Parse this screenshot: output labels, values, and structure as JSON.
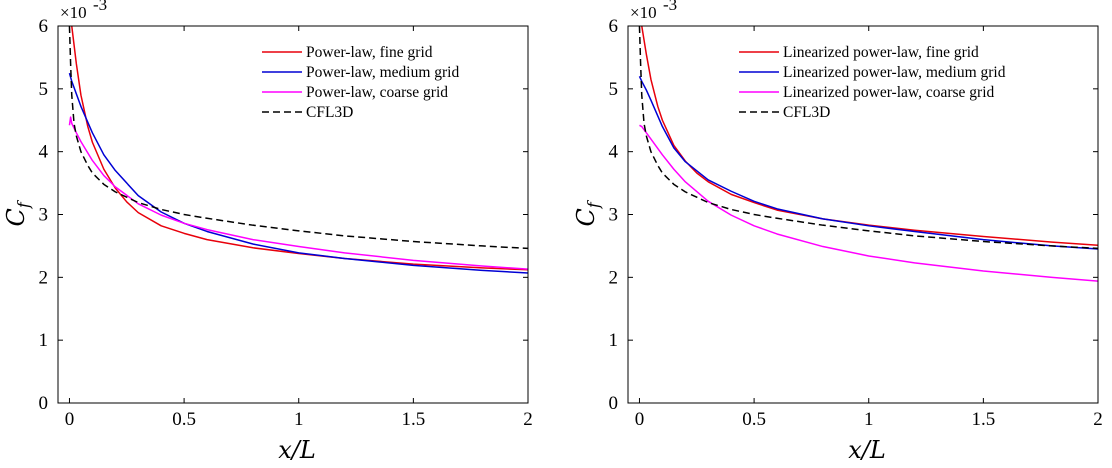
{
  "chart_data": [
    {
      "type": "line",
      "xlabel": "x/L",
      "ylabel": "C_f",
      "ylabel_main": "C",
      "ylabel_sub": "f",
      "exponent_label": "×10",
      "exponent_power": "-3",
      "xlim": [
        -0.05,
        2
      ],
      "ylim": [
        0,
        6
      ],
      "xticks": [
        0,
        0.5,
        1,
        1.5,
        2
      ],
      "xtick_labels": [
        "0",
        "0.5",
        "1",
        "1.5",
        "2"
      ],
      "yticks": [
        0,
        1,
        2,
        3,
        4,
        5,
        6
      ],
      "ytick_labels": [
        "0",
        "1",
        "2",
        "3",
        "4",
        "5",
        "6"
      ],
      "grid": false,
      "legend_position": "top-right",
      "series": [
        {
          "name": "Power-law, fine grid",
          "color": "#e8000b",
          "dash": "solid",
          "x": [
            0.01,
            0.03,
            0.05,
            0.08,
            0.1,
            0.15,
            0.2,
            0.25,
            0.3,
            0.4,
            0.5,
            0.6,
            0.8,
            1.0,
            1.2,
            1.5,
            1.8,
            2.0
          ],
          "y": [
            6.0,
            5.4,
            4.9,
            4.4,
            4.15,
            3.72,
            3.42,
            3.2,
            3.03,
            2.82,
            2.7,
            2.6,
            2.47,
            2.38,
            2.3,
            2.21,
            2.15,
            2.12
          ]
        },
        {
          "name": "Power-law, medium grid",
          "color": "#0000d4",
          "dash": "solid",
          "x": [
            0.0,
            0.01,
            0.03,
            0.05,
            0.1,
            0.15,
            0.2,
            0.3,
            0.4,
            0.5,
            0.6,
            0.8,
            1.0,
            1.2,
            1.5,
            1.8,
            2.0
          ],
          "y": [
            5.25,
            5.12,
            4.92,
            4.72,
            4.3,
            3.95,
            3.7,
            3.3,
            3.04,
            2.86,
            2.73,
            2.53,
            2.39,
            2.3,
            2.19,
            2.11,
            2.07
          ]
        },
        {
          "name": "Power-law, coarse grid",
          "color": "#ff00ff",
          "dash": "solid",
          "x": [
            0.0,
            0.005,
            0.01,
            0.03,
            0.05,
            0.1,
            0.15,
            0.2,
            0.3,
            0.4,
            0.5,
            0.6,
            0.8,
            1.0,
            1.2,
            1.5,
            1.8,
            2.0
          ],
          "y": [
            4.42,
            4.55,
            4.45,
            4.3,
            4.16,
            3.86,
            3.62,
            3.44,
            3.17,
            2.99,
            2.86,
            2.76,
            2.6,
            2.49,
            2.39,
            2.27,
            2.18,
            2.13
          ]
        },
        {
          "name": "CFL3D",
          "color": "#000000",
          "dash": "dashed",
          "x": [
            0.0,
            0.005,
            0.01,
            0.02,
            0.03,
            0.05,
            0.08,
            0.1,
            0.15,
            0.2,
            0.3,
            0.4,
            0.5,
            0.6,
            0.8,
            1.0,
            1.2,
            1.5,
            1.8,
            2.0
          ],
          "y": [
            6.0,
            5.4,
            4.9,
            4.45,
            4.25,
            4.0,
            3.78,
            3.66,
            3.48,
            3.36,
            3.19,
            3.08,
            3.0,
            2.94,
            2.83,
            2.74,
            2.66,
            2.57,
            2.5,
            2.46
          ]
        }
      ]
    },
    {
      "type": "line",
      "xlabel": "x/L",
      "ylabel": "C_f",
      "ylabel_main": "C",
      "ylabel_sub": "f",
      "exponent_label": "×10",
      "exponent_power": "-3",
      "xlim": [
        -0.05,
        2
      ],
      "ylim": [
        0,
        6
      ],
      "xticks": [
        0,
        0.5,
        1,
        1.5,
        2
      ],
      "xtick_labels": [
        "0",
        "0.5",
        "1",
        "1.5",
        "2"
      ],
      "yticks": [
        0,
        1,
        2,
        3,
        4,
        5,
        6
      ],
      "ytick_labels": [
        "0",
        "1",
        "2",
        "3",
        "4",
        "5",
        "6"
      ],
      "grid": false,
      "legend_position": "top-right",
      "series": [
        {
          "name": "Linearized power-law, fine grid",
          "color": "#e8000b",
          "dash": "solid",
          "x": [
            0.01,
            0.03,
            0.05,
            0.08,
            0.1,
            0.15,
            0.2,
            0.25,
            0.3,
            0.4,
            0.5,
            0.6,
            0.8,
            1.0,
            1.2,
            1.5,
            1.8,
            2.0
          ],
          "y": [
            6.0,
            5.55,
            5.15,
            4.72,
            4.5,
            4.1,
            3.85,
            3.66,
            3.52,
            3.32,
            3.19,
            3.07,
            2.93,
            2.83,
            2.75,
            2.65,
            2.56,
            2.51
          ]
        },
        {
          "name": "Linearized power-law, medium grid",
          "color": "#0000d4",
          "dash": "solid",
          "x": [
            0.0,
            0.01,
            0.03,
            0.05,
            0.1,
            0.15,
            0.2,
            0.3,
            0.4,
            0.5,
            0.6,
            0.8,
            1.0,
            1.2,
            1.5,
            1.8,
            2.0
          ],
          "y": [
            5.2,
            5.12,
            4.98,
            4.82,
            4.4,
            4.06,
            3.84,
            3.55,
            3.37,
            3.21,
            3.09,
            2.93,
            2.82,
            2.73,
            2.6,
            2.5,
            2.45
          ]
        },
        {
          "name": "Linearized power-law, coarse grid",
          "color": "#ff00ff",
          "dash": "solid",
          "x": [
            0.0,
            0.01,
            0.03,
            0.05,
            0.1,
            0.15,
            0.2,
            0.3,
            0.4,
            0.5,
            0.6,
            0.8,
            1.0,
            1.2,
            1.5,
            1.8,
            2.0
          ],
          "y": [
            4.42,
            4.4,
            4.3,
            4.2,
            3.95,
            3.72,
            3.52,
            3.21,
            2.99,
            2.82,
            2.69,
            2.49,
            2.34,
            2.23,
            2.1,
            2.0,
            1.94
          ]
        },
        {
          "name": "CFL3D",
          "color": "#000000",
          "dash": "dashed",
          "x": [
            0.0,
            0.005,
            0.01,
            0.02,
            0.03,
            0.05,
            0.08,
            0.1,
            0.15,
            0.2,
            0.3,
            0.4,
            0.5,
            0.6,
            0.8,
            1.0,
            1.2,
            1.5,
            1.8,
            2.0
          ],
          "y": [
            6.0,
            5.4,
            4.9,
            4.45,
            4.25,
            4.0,
            3.78,
            3.66,
            3.48,
            3.36,
            3.19,
            3.08,
            3.0,
            2.94,
            2.83,
            2.74,
            2.66,
            2.57,
            2.5,
            2.46
          ]
        }
      ]
    }
  ]
}
